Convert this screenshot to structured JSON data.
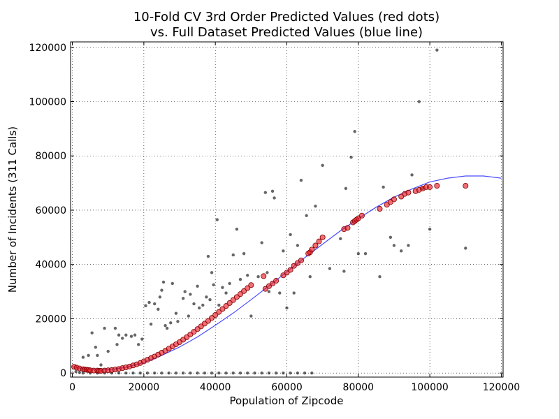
{
  "chart_data": {
    "type": "scatter",
    "title_line1": "10-Fold CV 3rd Order Predicted Values (red dots)",
    "title_line2": "vs. Full Dataset Predicted Values (blue line)",
    "xlabel": "Population of Zipcode",
    "ylabel": "Number of Incidents (311 Calls)",
    "xlim": [
      -500,
      120500
    ],
    "ylim": [
      -1500,
      122000
    ],
    "xticks": [
      0,
      20000,
      40000,
      60000,
      80000,
      100000,
      120000
    ],
    "yticks": [
      0,
      20000,
      40000,
      60000,
      80000,
      100000,
      120000
    ],
    "grid": true,
    "colors": {
      "actual": "#000000",
      "cv_fill": "#e8202a",
      "cv_edge": "#7a0000",
      "fit_line": "#4b4bff"
    },
    "fit_curve": {
      "description_source": "blue line",
      "x": [
        0,
        5000,
        10000,
        15000,
        20000,
        25000,
        30000,
        35000,
        40000,
        45000,
        50000,
        55000,
        60000,
        65000,
        70000,
        75000,
        80000,
        85000,
        90000,
        95000,
        100000,
        105000,
        110000,
        115000,
        120000
      ],
      "y": [
        2300,
        1200,
        1200,
        2100,
        3900,
        6500,
        9600,
        13300,
        17600,
        22100,
        27000,
        32100,
        37300,
        42500,
        47500,
        52400,
        56900,
        61100,
        64800,
        67800,
        70400,
        71800,
        72600,
        72600,
        71800
      ]
    },
    "cv_predictions": {
      "x": [
        500,
        1200,
        2000,
        3000,
        3500,
        4000,
        4500,
        5000,
        6000,
        7000,
        7500,
        8000,
        9000,
        10000,
        11000,
        12000,
        13000,
        14000,
        15000,
        16000,
        17000,
        18000,
        19000,
        20000,
        21000,
        22000,
        23000,
        24000,
        25000,
        26000,
        27000,
        28000,
        29000,
        30000,
        31000,
        32000,
        33000,
        34000,
        35000,
        36000,
        37000,
        38000,
        39000,
        40000,
        41000,
        42000,
        43000,
        44000,
        45000,
        46000,
        47000,
        48000,
        49000,
        50000,
        53500,
        54000,
        55000,
        56000,
        57000,
        59000,
        60000,
        61000,
        62000,
        63000,
        64000,
        66000,
        66500,
        67000,
        68000,
        69000,
        70000,
        76000,
        77000,
        78500,
        79000,
        79500,
        80000,
        81000,
        86000,
        88000,
        89000,
        90000,
        92000,
        93000,
        94000,
        96000,
        97000,
        98000,
        99000,
        100000,
        102000,
        110000
      ],
      "y": [
        2300,
        2000,
        1700,
        1400,
        1300,
        1200,
        1100,
        1000,
        900,
        900,
        800,
        800,
        900,
        1000,
        1100,
        1300,
        1500,
        1800,
        2100,
        2400,
        2800,
        3200,
        3700,
        4300,
        4900,
        5500,
        6100,
        6800,
        7500,
        8200,
        9000,
        9800,
        10600,
        11400,
        12300,
        13200,
        14200,
        15200,
        16200,
        17200,
        18200,
        19200,
        20300,
        21400,
        22500,
        23600,
        24700,
        25800,
        26900,
        28000,
        29100,
        30200,
        31300,
        32400,
        35700,
        31000,
        32000,
        33000,
        34000,
        36000,
        37000,
        38000,
        39500,
        40500,
        41500,
        44000,
        44500,
        45500,
        47000,
        48500,
        50000,
        53000,
        53500,
        55500,
        56000,
        56500,
        57000,
        58000,
        60500,
        62000,
        63000,
        64000,
        65000,
        66000,
        66500,
        67000,
        67500,
        68000,
        68500,
        68500,
        69000,
        69000
      ]
    },
    "actual_values": {
      "x": [
        1000,
        2000,
        3000,
        3500,
        4500,
        5500,
        6500,
        7000,
        8000,
        9000,
        10000,
        12000,
        12500,
        13000,
        14000,
        15000,
        16500,
        17500,
        18500,
        19500,
        20500,
        21500,
        22000,
        23000,
        24000,
        24500,
        25000,
        25500,
        26000,
        26500,
        27500,
        28000,
        29000,
        29500,
        31000,
        31500,
        32500,
        33000,
        34000,
        35000,
        35500,
        36500,
        37500,
        38000,
        38500,
        39000,
        39500,
        40500,
        41000,
        42000,
        43000,
        44000,
        45000,
        46000,
        47000,
        48000,
        49000,
        50000,
        52000,
        53000,
        54000,
        54500,
        55000,
        56000,
        56500,
        58000,
        59000,
        60000,
        61000,
        62000,
        63000,
        64000,
        65500,
        66500,
        68000,
        70000,
        72000,
        75000,
        76000,
        76500,
        78000,
        79000,
        80000,
        82000,
        86000,
        87000,
        89000,
        90000,
        92000,
        94000,
        95000,
        97000,
        98000,
        100000,
        102000,
        110000,
        3000,
        5000,
        7000,
        9000,
        11000,
        13000,
        15000,
        17000,
        19000,
        21000,
        23000,
        25000,
        27000,
        29000,
        31000,
        33000,
        35000,
        37000,
        39000,
        41000,
        43000,
        45000,
        47000,
        49000,
        51000,
        53000,
        55000,
        57000,
        59000,
        61000,
        63000,
        65000,
        67000
      ],
      "y": [
        500,
        200,
        5800,
        1500,
        6500,
        14800,
        9500,
        6500,
        3000,
        16500,
        8000,
        16500,
        10500,
        14000,
        12800,
        14000,
        13500,
        14000,
        10500,
        12500,
        24800,
        26000,
        18000,
        25500,
        23500,
        28000,
        30500,
        33500,
        17500,
        16500,
        18500,
        33000,
        22000,
        19000,
        27500,
        30000,
        21000,
        29000,
        25500,
        32000,
        24000,
        25000,
        28000,
        43000,
        27000,
        37000,
        32500,
        56500,
        25000,
        31500,
        29500,
        33000,
        43500,
        53000,
        34500,
        44000,
        36000,
        21000,
        35500,
        48000,
        66500,
        37000,
        30000,
        67000,
        64500,
        29500,
        45000,
        24000,
        51000,
        29500,
        47000,
        71000,
        58000,
        35500,
        61500,
        76500,
        38500,
        49500,
        37500,
        68000,
        79500,
        89000,
        44000,
        44000,
        35500,
        68500,
        50000,
        47000,
        45000,
        47000,
        73000,
        100000,
        68000,
        53000,
        119000,
        46000,
        0,
        0,
        0,
        0,
        0,
        0,
        0,
        0,
        0,
        0,
        0,
        0,
        0,
        0,
        0,
        0,
        0,
        0,
        0,
        0,
        0,
        0,
        0,
        0,
        0,
        0,
        0,
        0,
        0,
        0,
        0,
        0,
        0
      ]
    }
  }
}
